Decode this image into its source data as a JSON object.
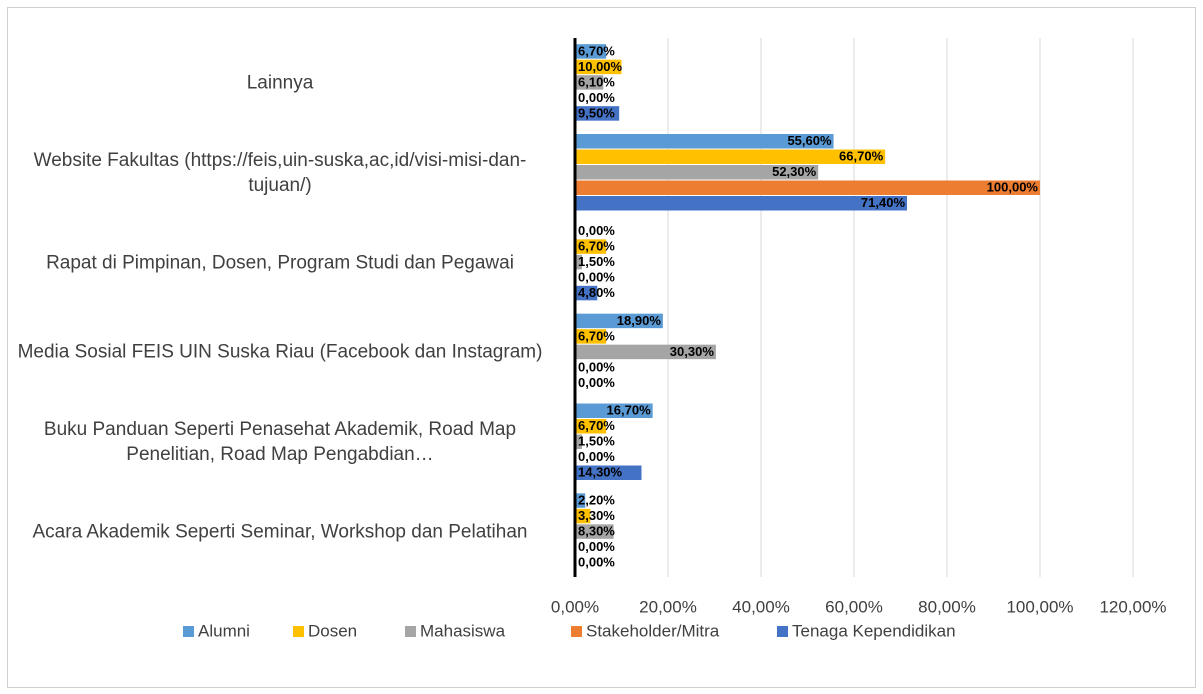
{
  "chart_data": {
    "type": "bar",
    "orientation": "horizontal",
    "categories": [
      "Lainnya",
      "Website Fakultas (https://feis,uin-suska,ac,id/visi-misi-dan-tujuan/)",
      "Rapat di Pimpinan, Dosen, Program Studi dan Pegawai",
      "Media Sosial FEIS UIN Suska Riau (Facebook dan Instagram)",
      "Buku Panduan Seperti Penasehat Akademik, Road Map Penelitian, Road Map Pengabdian…",
      "Acara Akademik Seperti Seminar, Workshop dan Pelatihan"
    ],
    "series": [
      {
        "name": "Alumni",
        "color": "#5b9bd5",
        "values": [
          6.7,
          55.6,
          0,
          18.9,
          16.7,
          2.2
        ],
        "value_labels": [
          "6,70%",
          "55,60%",
          "0,00%",
          "18,90%",
          "16,70%",
          "2,20%"
        ]
      },
      {
        "name": "Dosen",
        "color": "#ffc000",
        "values": [
          10.0,
          66.7,
          6.7,
          6.7,
          6.7,
          3.3
        ],
        "value_labels": [
          "10,00%",
          "66,70%",
          "6,70%",
          "6,70%",
          "6,70%",
          "3,30%"
        ]
      },
      {
        "name": "Mahasiswa",
        "color": "#a5a5a5",
        "values": [
          6.1,
          52.3,
          1.5,
          30.3,
          1.5,
          8.3
        ],
        "value_labels": [
          "6,10%",
          "52,30%",
          "1,50%",
          "30,30%",
          "1,50%",
          "8,30%"
        ]
      },
      {
        "name": "Stakeholder/Mitra",
        "color": "#ed7d31",
        "values": [
          0,
          100,
          0,
          0,
          0,
          0
        ],
        "value_labels": [
          "0,00%",
          "100,00%",
          "0,00%",
          "0,00%",
          "0,00%",
          "0,00%"
        ]
      },
      {
        "name": "Tenaga Kependidikan",
        "color": "#4472c4",
        "values": [
          9.5,
          71.4,
          4.8,
          0,
          14.3,
          0
        ],
        "value_labels": [
          "9,50%",
          "71,40%",
          "4,80%",
          "0,00%",
          "14,30%",
          "0,00%"
        ]
      }
    ],
    "xlim": [
      0,
      120
    ],
    "xticks": [
      {
        "value": 0,
        "label": "0,00%"
      },
      {
        "value": 20,
        "label": "20,00%"
      },
      {
        "value": 40,
        "label": "40,00%"
      },
      {
        "value": 60,
        "label": "60,00%"
      },
      {
        "value": 80,
        "label": "80,00%"
      },
      {
        "value": 100,
        "label": "100,00%"
      },
      {
        "value": 120,
        "label": "120,00%"
      }
    ],
    "grid": true,
    "legend": "bottom"
  }
}
